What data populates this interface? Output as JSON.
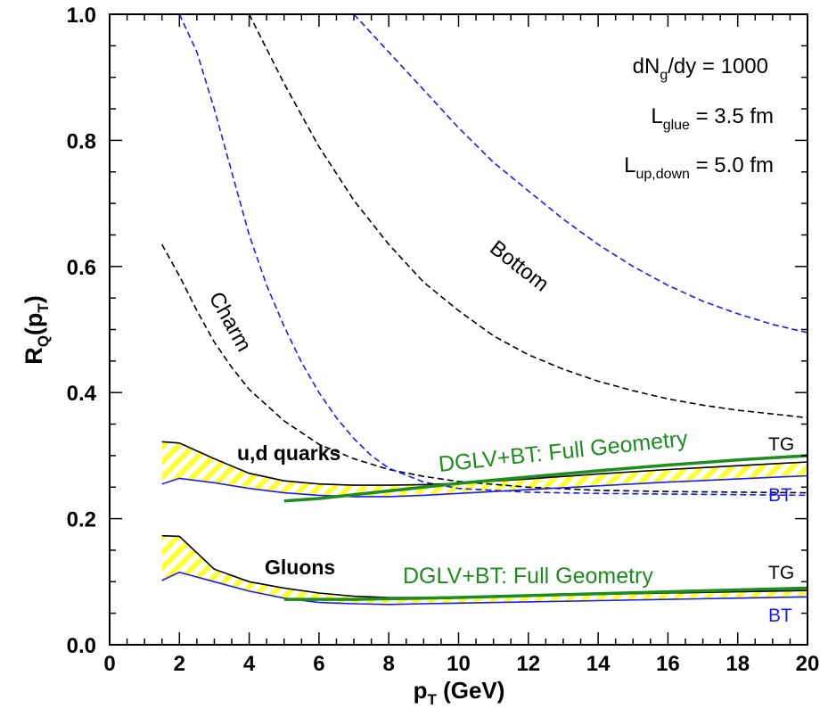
{
  "chart_data": {
    "type": "line",
    "xlabel_main": "p",
    "xlabel_sub": "T",
    "xlabel_unit": " (GeV)",
    "ylabel_main": "R",
    "ylabel_sub1": "Q",
    "ylabel_mid": "(p",
    "ylabel_sub2": "T",
    "ylabel_end": ")",
    "xlim": [
      0,
      20
    ],
    "ylim": [
      0,
      1.0
    ],
    "xticks": [
      0,
      2,
      4,
      6,
      8,
      10,
      12,
      14,
      16,
      18,
      20
    ],
    "xtick_labels": [
      "0",
      "2",
      "4",
      "6",
      "8",
      "10",
      "12",
      "14",
      "16",
      "18",
      "20"
    ],
    "yticks": [
      0.0,
      0.2,
      0.4,
      0.6,
      0.8,
      1.0
    ],
    "ytick_labels": [
      "0.0",
      "0.2",
      "0.4",
      "0.6",
      "0.8",
      "1.0"
    ],
    "parameters": {
      "line1": {
        "main": "dN",
        "sub": "g",
        "rest": "/dy = 1000"
      },
      "line2": {
        "main": "L",
        "sub": "glue",
        "rest": " = 3.5 fm"
      },
      "line3": {
        "main": "L",
        "sub": "up,down",
        "rest": " = 5.0 fm"
      }
    },
    "labels": {
      "charm": "Charm",
      "bottom": "Bottom",
      "ud_quarks": "u,d quarks",
      "gluons": "Gluons",
      "dglv_quarks": "DGLV+BT: Full Geometry",
      "dglv_gluons": "DGLV+BT: Full Geometry",
      "tg_quarks": "TG",
      "bt_quarks": "BT",
      "tg_gluons": "TG",
      "bt_gluons": "BT"
    },
    "colors": {
      "black": "#000000",
      "blue": "#1a1aff",
      "green": "#1e8c1e",
      "hatch": "#ffff33"
    },
    "series": [
      {
        "name": "charm-black-dashed",
        "color": "black",
        "style": "dashed",
        "x": [
          1.5,
          2,
          2.5,
          3,
          3.5,
          4,
          5,
          6,
          7,
          8,
          9,
          10,
          12,
          14,
          16,
          18,
          20
        ],
        "y": [
          0.635,
          0.585,
          0.53,
          0.48,
          0.44,
          0.405,
          0.355,
          0.318,
          0.295,
          0.278,
          0.267,
          0.259,
          0.25,
          0.245,
          0.243,
          0.242,
          0.241
        ]
      },
      {
        "name": "charm-blue-dashed",
        "color": "blue",
        "style": "dashed",
        "x": [
          2,
          2.5,
          3,
          3.5,
          4,
          4.5,
          5,
          5.5,
          6,
          6.5,
          7,
          7.5,
          8,
          9,
          10,
          12,
          14,
          16,
          18,
          20
        ],
        "y": [
          1.0,
          0.94,
          0.85,
          0.75,
          0.65,
          0.57,
          0.505,
          0.448,
          0.4,
          0.36,
          0.327,
          0.3,
          0.28,
          0.258,
          0.248,
          0.242,
          0.24,
          0.239,
          0.238,
          0.237
        ]
      },
      {
        "name": "bottom-black-dashed",
        "color": "black",
        "style": "dashed",
        "x": [
          4,
          5,
          6,
          7,
          8,
          9,
          10,
          11,
          12,
          13,
          14,
          15,
          16,
          17,
          18,
          19,
          20
        ],
        "y": [
          1.0,
          0.89,
          0.79,
          0.705,
          0.635,
          0.575,
          0.53,
          0.49,
          0.46,
          0.437,
          0.418,
          0.403,
          0.39,
          0.38,
          0.372,
          0.366,
          0.36
        ]
      },
      {
        "name": "bottom-blue-dashed",
        "color": "blue",
        "style": "dashed",
        "x": [
          7,
          8,
          9,
          10,
          11,
          12,
          13,
          14,
          15,
          16,
          17,
          18,
          19,
          20
        ],
        "y": [
          1.0,
          0.94,
          0.88,
          0.82,
          0.765,
          0.72,
          0.675,
          0.635,
          0.6,
          0.57,
          0.545,
          0.525,
          0.508,
          0.495
        ]
      },
      {
        "name": "ud-tg-upper",
        "color": "black",
        "style": "solid",
        "x": [
          1.5,
          2,
          3,
          4,
          5,
          6,
          7,
          8,
          9,
          10,
          12,
          14,
          16,
          18,
          20
        ],
        "y": [
          0.322,
          0.32,
          0.295,
          0.272,
          0.26,
          0.255,
          0.253,
          0.253,
          0.254,
          0.256,
          0.263,
          0.271,
          0.278,
          0.284,
          0.29
        ]
      },
      {
        "name": "ud-bt-lower",
        "color": "blue",
        "style": "solid",
        "x": [
          1.5,
          2,
          3,
          4,
          5,
          6,
          7,
          8,
          9,
          10,
          12,
          14,
          16,
          18,
          20
        ],
        "y": [
          0.255,
          0.264,
          0.257,
          0.248,
          0.241,
          0.237,
          0.235,
          0.235,
          0.237,
          0.24,
          0.246,
          0.252,
          0.258,
          0.263,
          0.268
        ]
      },
      {
        "name": "ud-dglv-green",
        "color": "green",
        "style": "solid",
        "x": [
          5,
          6,
          7,
          8,
          9,
          10,
          12,
          14,
          16,
          18,
          20
        ],
        "y": [
          0.228,
          0.232,
          0.238,
          0.244,
          0.25,
          0.256,
          0.266,
          0.276,
          0.285,
          0.293,
          0.3
        ]
      },
      {
        "name": "gluon-tg-upper",
        "color": "black",
        "style": "solid",
        "x": [
          1.5,
          2,
          3,
          4,
          5,
          6,
          7,
          8,
          9,
          10,
          12,
          14,
          16,
          18,
          20
        ],
        "y": [
          0.173,
          0.172,
          0.12,
          0.1,
          0.09,
          0.082,
          0.077,
          0.075,
          0.075,
          0.076,
          0.078,
          0.08,
          0.082,
          0.084,
          0.086
        ]
      },
      {
        "name": "gluon-bt-lower",
        "color": "blue",
        "style": "solid",
        "x": [
          1.5,
          2,
          3,
          4,
          5,
          6,
          7,
          8,
          9,
          10,
          12,
          14,
          16,
          18,
          20
        ],
        "y": [
          0.102,
          0.115,
          0.1,
          0.085,
          0.074,
          0.067,
          0.065,
          0.064,
          0.065,
          0.066,
          0.068,
          0.07,
          0.072,
          0.074,
          0.076
        ]
      },
      {
        "name": "gluon-dglv-green",
        "color": "green",
        "style": "solid",
        "x": [
          5,
          6,
          7,
          8,
          9,
          10,
          12,
          14,
          16,
          18,
          20
        ],
        "y": [
          0.072,
          0.072,
          0.072,
          0.073,
          0.074,
          0.075,
          0.078,
          0.081,
          0.084,
          0.087,
          0.09
        ]
      }
    ],
    "bands": [
      {
        "name": "ud-quarks-band",
        "upper": "ud-tg-upper",
        "lower": "ud-bt-lower"
      },
      {
        "name": "gluons-band",
        "upper": "gluon-tg-upper",
        "lower": "gluon-bt-lower"
      }
    ]
  }
}
